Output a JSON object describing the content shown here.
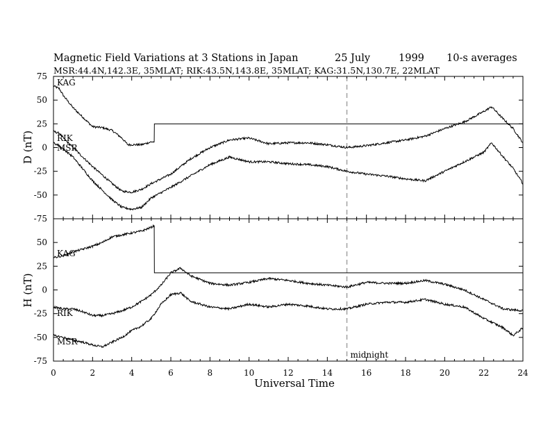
{
  "chart_data": {
    "type": "line",
    "title": {
      "main": "Magnetic Field Variations at 3 Stations in Japan",
      "date": "25 July",
      "year": "1999",
      "avg": "10-s averages"
    },
    "subtitle": "MSR:44.4N,142.3E, 35MLAT;  RIK:43.5N,143.8E, 35MLAT;  KAG:31.5N,130.7E, 22MLAT",
    "xlabel": "Universal Time",
    "xlim": [
      0,
      24
    ],
    "xticks": [
      "0",
      "2",
      "4",
      "6",
      "8",
      "10",
      "12",
      "14",
      "16",
      "18",
      "20",
      "22",
      "24"
    ],
    "grid": false,
    "marker_line": {
      "x": 15,
      "label": "midnight"
    },
    "panels": [
      {
        "ylabel": "D (nT)",
        "ylim": [
          -75,
          75
        ],
        "yticks": [
          "75",
          "50",
          "25",
          "0",
          "-25",
          "-50",
          "-75"
        ],
        "series": [
          {
            "name": "KAG",
            "x": [
              0,
              0.3,
              0.5,
              1,
              1.5,
              2,
              2.5,
              3,
              3.5,
              3.8,
              4,
              4.5,
              5,
              5.15,
              5.16,
              24
            ],
            "y": [
              65,
              62,
              55,
              42,
              32,
              22,
              21,
              18,
              10,
              3,
              3,
              3,
              6,
              6,
              25,
              25
            ]
          },
          {
            "name": "RIK",
            "x": [
              0,
              0.3,
              0.6,
              1,
              2,
              3,
              3.5,
              4,
              4.5,
              5,
              6,
              7,
              8,
              9,
              10,
              11,
              12,
              13,
              14,
              15,
              16,
              17,
              18,
              19,
              20,
              21,
              22,
              22.4,
              23,
              23.5,
              24
            ],
            "y": [
              17,
              15,
              8,
              0,
              -20,
              -38,
              -46,
              -47,
              -44,
              -38,
              -28,
              -12,
              0,
              8,
              10,
              4,
              5,
              5,
              3,
              0,
              2,
              5,
              8,
              12,
              20,
              27,
              38,
              43,
              30,
              20,
              5
            ]
          },
          {
            "name": "MSR",
            "x": [
              0,
              0.3,
              0.6,
              1,
              2,
              3,
              3.5,
              4,
              4.5,
              5,
              6,
              7,
              8,
              9,
              10,
              11,
              12,
              13,
              14,
              15,
              16,
              17,
              18,
              19,
              20,
              21,
              22,
              22.4,
              23,
              23.5,
              24
            ],
            "y": [
              5,
              2,
              -3,
              -10,
              -35,
              -55,
              -63,
              -65,
              -63,
              -53,
              -42,
              -30,
              -18,
              -10,
              -15,
              -15,
              -17,
              -18,
              -20,
              -25,
              -28,
              -30,
              -33,
              -35,
              -25,
              -15,
              -5,
              5,
              -10,
              -22,
              -38
            ]
          }
        ]
      },
      {
        "ylabel": "H (nT)",
        "ylim": [
          -75,
          75
        ],
        "yticks": [
          "75",
          "50",
          "25",
          "0",
          "-25",
          "-50",
          "-75"
        ],
        "series": [
          {
            "name": "KAG",
            "x": [
              0,
              0.5,
              1,
              1.5,
              2,
              2.5,
              3,
              3.5,
              4,
              4.5,
              5,
              5.15,
              5.16,
              24
            ],
            "y": [
              34,
              36,
              40,
              43,
              46,
              50,
              56,
              58,
              60,
              62,
              66,
              68,
              18,
              18
            ]
          },
          {
            "name": "RIK",
            "x": [
              0,
              0.5,
              1,
              1.5,
              2,
              2.5,
              3,
              3.5,
              4,
              4.5,
              5,
              5.5,
              6,
              6.5,
              7,
              8,
              9,
              10,
              11,
              12,
              13,
              14,
              15,
              16,
              17,
              18,
              19,
              20,
              21,
              22,
              23,
              24
            ],
            "y": [
              -18,
              -20,
              -20,
              -23,
              -27,
              -27,
              -25,
              -22,
              -18,
              -12,
              -5,
              5,
              18,
              23,
              15,
              7,
              5,
              8,
              12,
              10,
              7,
              5,
              3,
              8,
              7,
              7,
              10,
              6,
              0,
              -10,
              -20,
              -22
            ]
          },
          {
            "name": "MSR",
            "x": [
              0,
              0.5,
              1,
              1.5,
              2,
              2.5,
              3,
              3.5,
              4,
              4.5,
              5,
              5.5,
              6,
              6.5,
              7,
              8,
              9,
              10,
              11,
              12,
              13,
              14,
              15,
              16,
              17,
              18,
              19,
              20,
              21,
              22,
              23,
              23.5,
              24
            ],
            "y": [
              -48,
              -50,
              -53,
              -55,
              -58,
              -60,
              -55,
              -50,
              -43,
              -38,
              -30,
              -15,
              -5,
              -3,
              -12,
              -18,
              -20,
              -15,
              -18,
              -15,
              -17,
              -20,
              -20,
              -15,
              -13,
              -13,
              -10,
              -15,
              -18,
              -30,
              -40,
              -48,
              -40
            ]
          }
        ]
      }
    ],
    "dashed_color": "#a6a6a6",
    "line_color": "#000000"
  }
}
